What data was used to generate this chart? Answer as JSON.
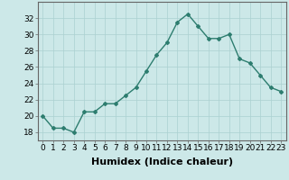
{
  "x": [
    0,
    1,
    2,
    3,
    4,
    5,
    6,
    7,
    8,
    9,
    10,
    11,
    12,
    13,
    14,
    15,
    16,
    17,
    18,
    19,
    20,
    21,
    22,
    23
  ],
  "y": [
    20,
    18.5,
    18.5,
    18,
    20.5,
    20.5,
    21.5,
    21.5,
    22.5,
    23.5,
    25.5,
    27.5,
    29,
    31.5,
    32.5,
    31,
    29.5,
    29.5,
    30,
    27,
    26.5,
    25,
    23.5,
    23
  ],
  "line_color": "#2d7d6f",
  "marker": "D",
  "marker_size": 2.0,
  "bg_color": "#cce8e8",
  "grid_color": "#aad0d0",
  "xlabel": "Humidex (Indice chaleur)",
  "xlabel_fontsize": 8,
  "ylabel_ticks": [
    18,
    20,
    22,
    24,
    26,
    28,
    30,
    32
  ],
  "ylim": [
    17,
    34
  ],
  "xlim": [
    -0.5,
    23.5
  ],
  "xtick_labels": [
    "0",
    "1",
    "2",
    "3",
    "4",
    "5",
    "6",
    "7",
    "8",
    "9",
    "10",
    "11",
    "12",
    "13",
    "14",
    "15",
    "16",
    "17",
    "18",
    "19",
    "20",
    "21",
    "22",
    "23"
  ],
  "tick_fontsize": 6.5,
  "spine_color": "#666666",
  "line_width": 1.0
}
